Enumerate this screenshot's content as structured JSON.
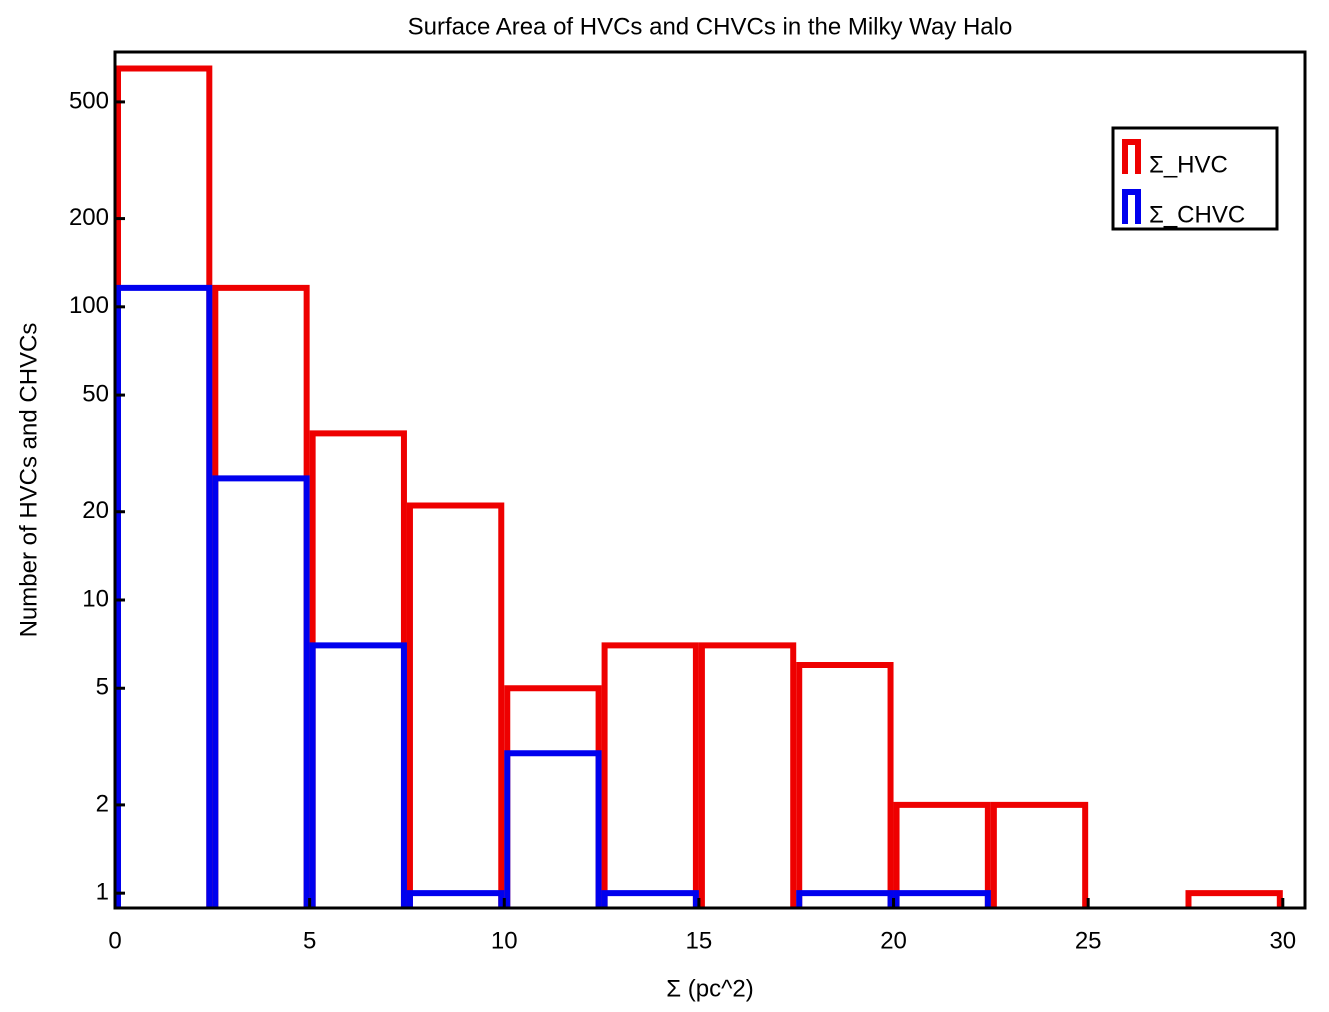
{
  "chart_data": {
    "type": "histogram",
    "title": "Surface Area of HVCs and CHVCs in the Milky Way Halo",
    "xlabel": "Σ (pc^2)",
    "ylabel": "Number of HVCs and CHVCs",
    "bins": [
      0,
      2.5,
      5,
      7.5,
      10,
      12.5,
      15,
      17.5,
      20,
      22.5,
      25,
      27.5,
      30
    ],
    "series": [
      {
        "name": "Σ_HVC",
        "color": "#ee0000",
        "values": [
          650,
          116,
          37,
          21,
          5,
          7,
          7,
          6,
          2,
          2,
          0,
          1
        ]
      },
      {
        "name": "Σ_CHVC",
        "color": "#0000ee",
        "values": [
          116,
          26,
          7,
          1,
          3,
          1,
          0,
          1,
          1,
          0,
          0,
          0
        ]
      }
    ],
    "xlim": [
      0,
      30.57
    ],
    "ylim": [
      0.89,
      740
    ],
    "xticks": [
      0,
      5,
      10,
      15,
      20,
      25,
      30
    ],
    "yticks": [
      1,
      2,
      5,
      10,
      20,
      50,
      100,
      200,
      500
    ],
    "ylog": true,
    "legend": "upper right"
  }
}
